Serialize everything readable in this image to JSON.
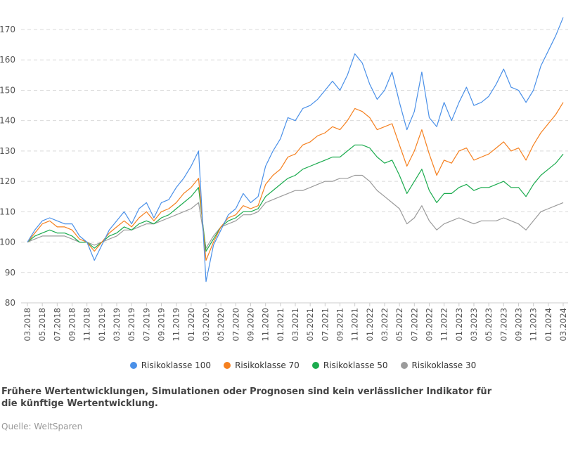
{
  "chart_data": {
    "type": "line",
    "x": [
      "03.2018",
      "04.2018",
      "05.2018",
      "06.2018",
      "07.2018",
      "08.2018",
      "09.2018",
      "10.2018",
      "11.2018",
      "12.2018",
      "01.2019",
      "02.2019",
      "03.2019",
      "04.2019",
      "05.2019",
      "06.2019",
      "07.2019",
      "08.2019",
      "09.2019",
      "10.2019",
      "11.2019",
      "12.2019",
      "01.2020",
      "02.2020",
      "03.2020",
      "04.2020",
      "05.2020",
      "06.2020",
      "07.2020",
      "08.2020",
      "09.2020",
      "10.2020",
      "11.2020",
      "12.2020",
      "01.2021",
      "02.2021",
      "03.2021",
      "04.2021",
      "05.2021",
      "06.2021",
      "07.2021",
      "08.2021",
      "09.2021",
      "10.2021",
      "11.2021",
      "12.2021",
      "01.2022",
      "02.2022",
      "03.2022",
      "04.2022",
      "05.2022",
      "06.2022",
      "07.2022",
      "08.2022",
      "09.2022",
      "10.2022",
      "11.2022",
      "12.2022",
      "01.2023",
      "02.2023",
      "03.2023",
      "04.2023",
      "05.2023",
      "06.2023",
      "07.2023",
      "08.2023",
      "09.2023",
      "10.2023",
      "11.2023",
      "12.2023",
      "01.2024",
      "02.2024",
      "03.2024"
    ],
    "x_tick_labels": [
      "03.2018",
      "05.2018",
      "07.2018",
      "09.2018",
      "11.2018",
      "01.2019",
      "03.2019",
      "05.2019",
      "07.2019",
      "09.2019",
      "11.2019",
      "01.2020",
      "03.2020",
      "05.2020",
      "07.2020",
      "09.2020",
      "11.2020",
      "01.2021",
      "03.2021",
      "05.2021",
      "07.2021",
      "09.2021",
      "11.2021",
      "01.2022",
      "03.2022",
      "05.2022",
      "07.2022",
      "09.2022",
      "11.2022",
      "01.2023",
      "03.2023",
      "05.2023",
      "07.2023",
      "09.2023",
      "11.2023",
      "01.2024",
      "03.2024"
    ],
    "y_ticks": [
      80,
      90,
      100,
      110,
      120,
      130,
      140,
      150,
      160,
      170
    ],
    "ylim": [
      80,
      172
    ],
    "grid": "horizontal-dashed",
    "legend_position": "bottom",
    "series": [
      {
        "name": "Risikoklasse 100",
        "color": "#4a90e8",
        "values": [
          100,
          104,
          107,
          108,
          107,
          106,
          106,
          102,
          100,
          94,
          99,
          104,
          107,
          110,
          106,
          111,
          113,
          108,
          113,
          114,
          118,
          121,
          125,
          130,
          87,
          99,
          104,
          109,
          111,
          116,
          113,
          115,
          125,
          130,
          134,
          141,
          140,
          144,
          145,
          147,
          150,
          153,
          150,
          155,
          162,
          159,
          152,
          147,
          150,
          156,
          146,
          137,
          143,
          156,
          141,
          138,
          146,
          140,
          146,
          151,
          145,
          146,
          148,
          152,
          157,
          151,
          150,
          146,
          150,
          158,
          163,
          168,
          174
        ]
      },
      {
        "name": "Risikoklasse 70",
        "color": "#f5801f",
        "values": [
          100,
          103,
          106,
          107,
          105,
          105,
          104,
          101,
          100,
          97,
          100,
          103,
          105,
          107,
          105,
          108,
          110,
          107,
          110,
          111,
          113,
          116,
          118,
          121,
          94,
          100,
          105,
          108,
          109,
          112,
          111,
          112,
          119,
          122,
          124,
          128,
          129,
          132,
          133,
          135,
          136,
          138,
          137,
          140,
          144,
          143,
          141,
          137,
          138,
          139,
          132,
          125,
          130,
          137,
          129,
          122,
          127,
          126,
          130,
          131,
          127,
          128,
          129,
          131,
          133,
          130,
          131,
          127,
          132,
          136,
          139,
          142,
          146
        ]
      },
      {
        "name": "Risikoklasse 50",
        "color": "#1bab4e",
        "values": [
          100,
          102,
          103,
          104,
          103,
          103,
          102,
          100,
          100,
          98,
          100,
          102,
          103,
          105,
          104,
          106,
          107,
          106,
          108,
          109,
          111,
          113,
          115,
          118,
          97,
          101,
          105,
          107,
          108,
          110,
          110,
          111,
          115,
          117,
          119,
          121,
          122,
          124,
          125,
          126,
          127,
          128,
          128,
          130,
          132,
          132,
          131,
          128,
          126,
          127,
          122,
          116,
          120,
          124,
          117,
          113,
          116,
          116,
          118,
          119,
          117,
          118,
          118,
          119,
          120,
          118,
          118,
          115,
          119,
          122,
          124,
          126,
          129
        ]
      },
      {
        "name": "Risikoklasse 30",
        "color": "#9b9b9b",
        "values": [
          100,
          101,
          102,
          102,
          102,
          102,
          101,
          100,
          100,
          99,
          100,
          101,
          102,
          104,
          104,
          105,
          106,
          106,
          107,
          108,
          109,
          110,
          111,
          113,
          98,
          102,
          105,
          106,
          107,
          109,
          109,
          110,
          113,
          114,
          115,
          116,
          117,
          117,
          118,
          119,
          120,
          120,
          121,
          121,
          122,
          122,
          120,
          117,
          115,
          113,
          111,
          106,
          108,
          112,
          107,
          104,
          106,
          107,
          108,
          107,
          106,
          107,
          107,
          107,
          108,
          107,
          106,
          104,
          107,
          110,
          111,
          112,
          113
        ]
      }
    ]
  },
  "note": "Frühere Wertentwicklungen, Simulationen oder Prognosen sind kein verlässlicher Indikator für die künftige Wertentwicklung.",
  "source": "Quelle: WeltSparen"
}
